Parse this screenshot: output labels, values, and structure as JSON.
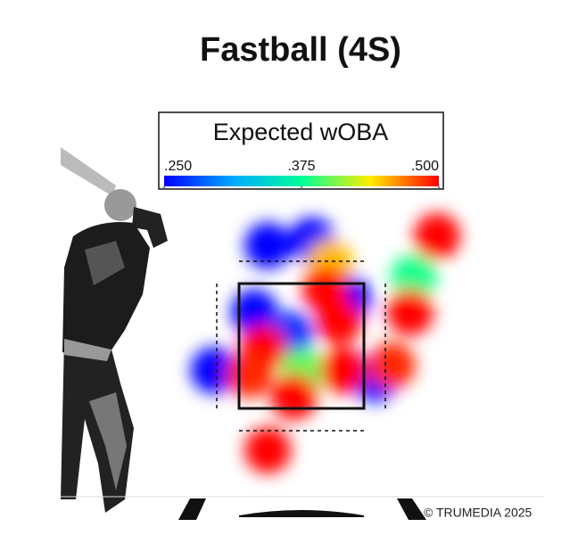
{
  "chart_data": {
    "type": "heatmap",
    "title": "Fastball (4S)",
    "legend_title": "Expected wOBA",
    "colorbar": {
      "lim": [
        0.25,
        0.5
      ],
      "ticks": [
        {
          "value": 0.25,
          "label": ".250"
        },
        {
          "value": 0.375,
          "label": ".375"
        },
        {
          "value": 0.5,
          "label": ".500"
        }
      ],
      "colors": [
        "#0000ff",
        "#00aaff",
        "#00ff99",
        "#ffee00",
        "#ff0000"
      ]
    },
    "xlim": [
      -2,
      2
    ],
    "ylim": [
      0,
      5
    ],
    "points": [
      {
        "x": -0.45,
        "z": 4.11,
        "value": 0.25
      },
      {
        "x": 0.14,
        "z": 4.19,
        "value": 0.25
      },
      {
        "x": 0.62,
        "z": 3.26,
        "value": 0.25
      },
      {
        "x": -0.63,
        "z": 3.04,
        "value": 0.25
      },
      {
        "x": -1.17,
        "z": 2.11,
        "value": 0.25
      },
      {
        "x": 0.98,
        "z": 1.97,
        "value": 0.26
      },
      {
        "x": -0.15,
        "z": 2.69,
        "value": 0.27
      },
      {
        "x": 1.5,
        "z": 3.6,
        "value": 0.38
      },
      {
        "x": 0.02,
        "z": 2.1,
        "value": 0.4
      },
      {
        "x": 0.38,
        "z": 3.83,
        "value": 0.45
      },
      {
        "x": -0.51,
        "z": 2.47,
        "value": 0.5
      },
      {
        "x": 0.5,
        "z": 2.9,
        "value": 0.5
      },
      {
        "x": 0.56,
        "z": 2.11,
        "value": 0.5
      },
      {
        "x": -0.1,
        "z": 1.69,
        "value": 0.5
      },
      {
        "x": -0.69,
        "z": 2.04,
        "value": 0.49
      },
      {
        "x": 1.45,
        "z": 3.04,
        "value": 0.5
      },
      {
        "x": 1.81,
        "z": 4.26,
        "value": 0.5
      },
      {
        "x": -0.45,
        "z": 0.83,
        "value": 0.5
      },
      {
        "x": 1.21,
        "z": 2.19,
        "value": 0.49
      },
      {
        "x": 0.32,
        "z": 3.4,
        "value": 0.5
      }
    ],
    "footer": "© TRUMEDIA 2025"
  }
}
